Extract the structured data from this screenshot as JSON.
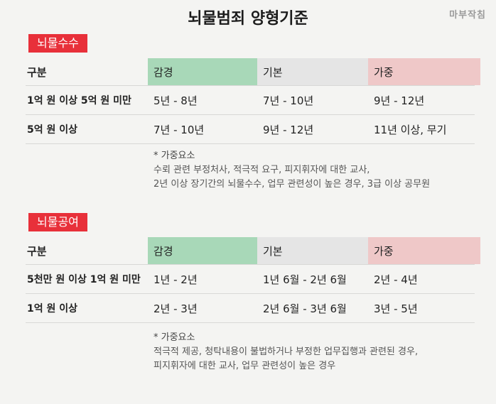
{
  "title": "뇌물범죄 양형기준",
  "brand": "마부작침",
  "sections": [
    {
      "tag": "뇌물수수",
      "header": [
        "구분",
        "감경",
        "기본",
        "가중"
      ],
      "rows": [
        [
          "1억 원 이상 5억 원 미만",
          "5년 - 8년",
          "7년 - 10년",
          "9년 - 12년"
        ],
        [
          "5억 원 이상",
          "7년 - 10년",
          "9년 - 12년",
          "11년 이상, 무기"
        ]
      ],
      "note_head": "* 가중요소",
      "note_lines": [
        "수뢰 관련 부정처사, 적극적 요구, 피지휘자에 대한 교사,",
        "2년 이상 장기간의 뇌물수수, 업무 관련성이 높은 경우, 3급 이상 공무원"
      ]
    },
    {
      "tag": "뇌물공여",
      "header": [
        "구분",
        "감경",
        "기본",
        "가중"
      ],
      "rows": [
        [
          "5천만 원 이상 1억 원 미만",
          "1년 - 2년",
          "1년 6월 - 2년 6월",
          "2년 - 4년"
        ],
        [
          "1억 원 이상",
          "2년 - 3년",
          "2년 6월 - 3년 6월",
          "3년 - 5년"
        ]
      ],
      "note_head": "* 가중요소",
      "note_lines": [
        "적극적 제공, 청탁내용이 불법하거나 부정한 업무집행과 관련된 경우,",
        "피지휘자에 대한 교사, 업무 관련성이 높은 경우"
      ]
    }
  ]
}
